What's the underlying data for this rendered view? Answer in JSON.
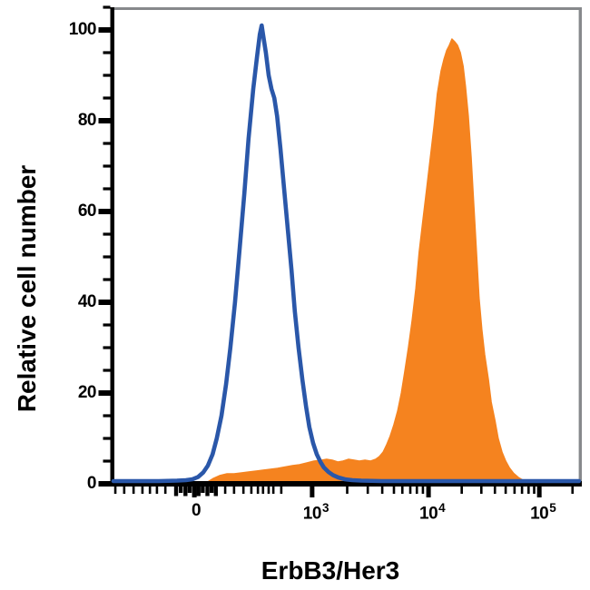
{
  "figure": {
    "type": "flow_cytometry_histogram_overlay",
    "background": "#ffffff",
    "axis_color": "#000000",
    "frame_color": "#87898c",
    "x_axis": {
      "label": "ErbB3/Her3",
      "scale": "biexponential",
      "major_ticks": [
        {
          "pos": 0.173,
          "base": "0",
          "exp": ""
        },
        {
          "pos": 0.425,
          "base": "10",
          "exp": "3"
        },
        {
          "pos": 0.674,
          "base": "10",
          "exp": "4"
        },
        {
          "pos": 0.911,
          "base": "10",
          "exp": "5"
        }
      ],
      "minor_ticks": [
        0.004,
        0.023,
        0.043,
        0.062,
        0.078,
        0.093,
        0.111,
        0.239,
        0.258,
        0.278,
        0.295,
        0.309,
        0.32,
        0.332,
        0.342,
        0.359,
        0.5,
        0.544,
        0.575,
        0.6,
        0.618,
        0.635,
        0.649,
        0.662,
        0.745,
        0.787,
        0.816,
        0.839,
        0.858,
        0.874,
        0.888,
        0.9,
        0.982
      ],
      "cluster_ticks": [
        0.134,
        0.144,
        0.154,
        0.163,
        0.182,
        0.191,
        0.201,
        0.21,
        0.219
      ]
    },
    "y_axis": {
      "label": "Relative cell number",
      "major_ticks": [
        0,
        20,
        40,
        60,
        80,
        100
      ],
      "minor_step": 5,
      "max": 105
    }
  },
  "chart_data": {
    "type": "area",
    "title": "",
    "xlabel": "ErbB3/Her3",
    "ylabel": "Relative cell number",
    "x_tick_labels": [
      "0",
      "10^3",
      "10^4",
      "10^5"
    ],
    "x_scale": "biexponential (logicle), pos = fraction of axis width",
    "ylim": [
      0,
      105
    ],
    "grid": false,
    "legend": "none",
    "series": [
      {
        "name": "orange-filled-histogram",
        "style": "filled",
        "color": "#F5831F",
        "fill": "#F5831F",
        "peak": {
          "pos": 0.724,
          "value": 98
        },
        "points": [
          [
            0.2,
            0.3
          ],
          [
            0.214,
            1.2
          ],
          [
            0.227,
            1.8
          ],
          [
            0.243,
            2.2
          ],
          [
            0.258,
            2.2
          ],
          [
            0.274,
            2.4
          ],
          [
            0.289,
            2.6
          ],
          [
            0.305,
            2.8
          ],
          [
            0.32,
            3.0
          ],
          [
            0.336,
            3.2
          ],
          [
            0.351,
            3.4
          ],
          [
            0.367,
            3.7
          ],
          [
            0.383,
            4.0
          ],
          [
            0.398,
            4.2
          ],
          [
            0.414,
            4.6
          ],
          [
            0.429,
            5.0
          ],
          [
            0.445,
            5.2
          ],
          [
            0.456,
            5.4
          ],
          [
            0.468,
            5.2
          ],
          [
            0.48,
            4.8
          ],
          [
            0.491,
            5.0
          ],
          [
            0.503,
            5.4
          ],
          [
            0.515,
            5.2
          ],
          [
            0.526,
            5.0
          ],
          [
            0.538,
            5.2
          ],
          [
            0.55,
            5.0
          ],
          [
            0.561,
            5.4
          ],
          [
            0.569,
            6.0
          ],
          [
            0.577,
            7.0
          ],
          [
            0.584,
            8.5
          ],
          [
            0.592,
            10.5
          ],
          [
            0.6,
            13
          ],
          [
            0.608,
            16
          ],
          [
            0.616,
            20
          ],
          [
            0.623,
            24.5
          ],
          [
            0.631,
            30
          ],
          [
            0.639,
            36
          ],
          [
            0.647,
            43
          ],
          [
            0.654,
            51
          ],
          [
            0.662,
            58
          ],
          [
            0.67,
            65
          ],
          [
            0.678,
            72
          ],
          [
            0.686,
            79
          ],
          [
            0.693,
            86
          ],
          [
            0.701,
            91
          ],
          [
            0.707,
            93.5
          ],
          [
            0.713,
            95.5
          ],
          [
            0.718,
            96.5
          ],
          [
            0.724,
            98
          ],
          [
            0.73,
            97.4
          ],
          [
            0.736,
            96.6
          ],
          [
            0.742,
            95
          ],
          [
            0.748,
            92
          ],
          [
            0.753,
            87.5
          ],
          [
            0.759,
            81
          ],
          [
            0.765,
            72
          ],
          [
            0.771,
            61
          ],
          [
            0.777,
            50
          ],
          [
            0.782,
            41
          ],
          [
            0.788,
            34
          ],
          [
            0.794,
            28.5
          ],
          [
            0.802,
            23
          ],
          [
            0.808,
            18
          ],
          [
            0.816,
            14
          ],
          [
            0.823,
            10
          ],
          [
            0.831,
            7
          ],
          [
            0.839,
            5
          ],
          [
            0.847,
            3.5
          ],
          [
            0.856,
            2.3
          ],
          [
            0.866,
            1.4
          ],
          [
            0.876,
            0.8
          ],
          [
            0.883,
            0.4
          ]
        ]
      },
      {
        "name": "blue-open-histogram",
        "style": "open",
        "color": "#2A57A9",
        "fill": "none",
        "peak": {
          "pos": 0.317,
          "value": 101
        },
        "points": [
          [
            0.0,
            0.6
          ],
          [
            0.049,
            0.6
          ],
          [
            0.097,
            0.6
          ],
          [
            0.136,
            0.7
          ],
          [
            0.155,
            0.8
          ],
          [
            0.169,
            1.0
          ],
          [
            0.181,
            1.5
          ],
          [
            0.192,
            2.5
          ],
          [
            0.202,
            4
          ],
          [
            0.212,
            6.5
          ],
          [
            0.221,
            10
          ],
          [
            0.231,
            15
          ],
          [
            0.241,
            22
          ],
          [
            0.25,
            30
          ],
          [
            0.26,
            40
          ],
          [
            0.27,
            52
          ],
          [
            0.28,
            64
          ],
          [
            0.289,
            76
          ],
          [
            0.299,
            87
          ],
          [
            0.307,
            94
          ],
          [
            0.313,
            99
          ],
          [
            0.317,
            101
          ],
          [
            0.32,
            99
          ],
          [
            0.326,
            95
          ],
          [
            0.332,
            90
          ],
          [
            0.338,
            87
          ],
          [
            0.344,
            85
          ],
          [
            0.35,
            81
          ],
          [
            0.357,
            74
          ],
          [
            0.365,
            65
          ],
          [
            0.373,
            56
          ],
          [
            0.381,
            47
          ],
          [
            0.388,
            38
          ],
          [
            0.396,
            30
          ],
          [
            0.404,
            23
          ],
          [
            0.412,
            17
          ],
          [
            0.419,
            12.5
          ],
          [
            0.427,
            9
          ],
          [
            0.435,
            6.5
          ],
          [
            0.443,
            4.8
          ],
          [
            0.45,
            3.6
          ],
          [
            0.46,
            2.6
          ],
          [
            0.47,
            1.9
          ],
          [
            0.481,
            1.4
          ],
          [
            0.495,
            1.0
          ],
          [
            0.511,
            0.8
          ],
          [
            0.53,
            0.7
          ],
          [
            0.573,
            0.6
          ],
          [
            0.65,
            0.6
          ],
          [
            0.767,
            0.6
          ],
          [
            0.883,
            0.6
          ],
          [
            0.996,
            0.6
          ]
        ]
      }
    ]
  }
}
